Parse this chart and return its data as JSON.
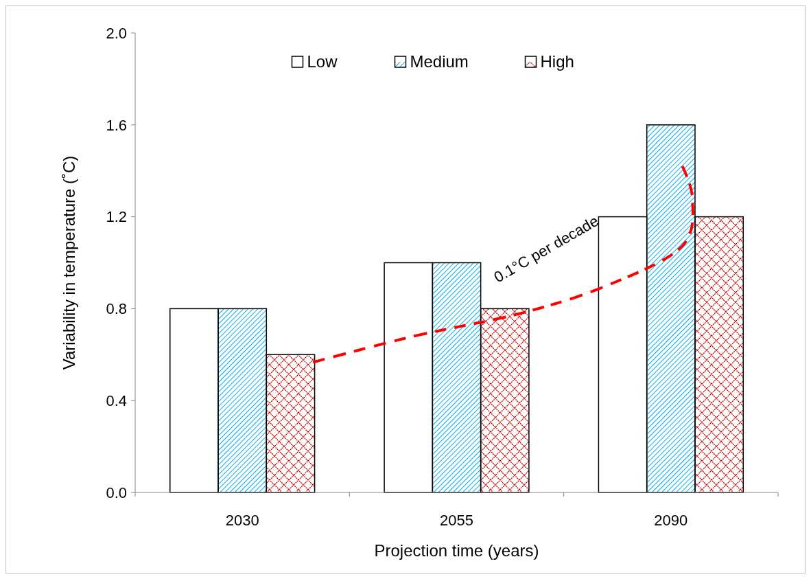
{
  "chart_data": {
    "type": "bar",
    "xlabel": "Projection time (years)",
    "ylabel": "Variability in temperature (˚C)",
    "categories": [
      "2030",
      "2055",
      "2090"
    ],
    "series": [
      {
        "name": "Low",
        "color": "#ffffff",
        "values": [
          0.8,
          1.0,
          1.2
        ]
      },
      {
        "name": "Medium",
        "color": "#00b0f0",
        "values": [
          0.8,
          1.0,
          1.6
        ]
      },
      {
        "name": "High",
        "color": "#c00000",
        "values": [
          0.6,
          0.8,
          1.2
        ]
      }
    ],
    "ylim": [
      0,
      2
    ],
    "yticks": [
      {
        "value": 0,
        "label": "0.0"
      },
      0.4,
      0.8,
      1.2,
      1.6,
      {
        "value": 2,
        "label": "2.0"
      }
    ],
    "grid": false,
    "legend": "top",
    "annotations": [
      "0.1°C per decade"
    ]
  }
}
